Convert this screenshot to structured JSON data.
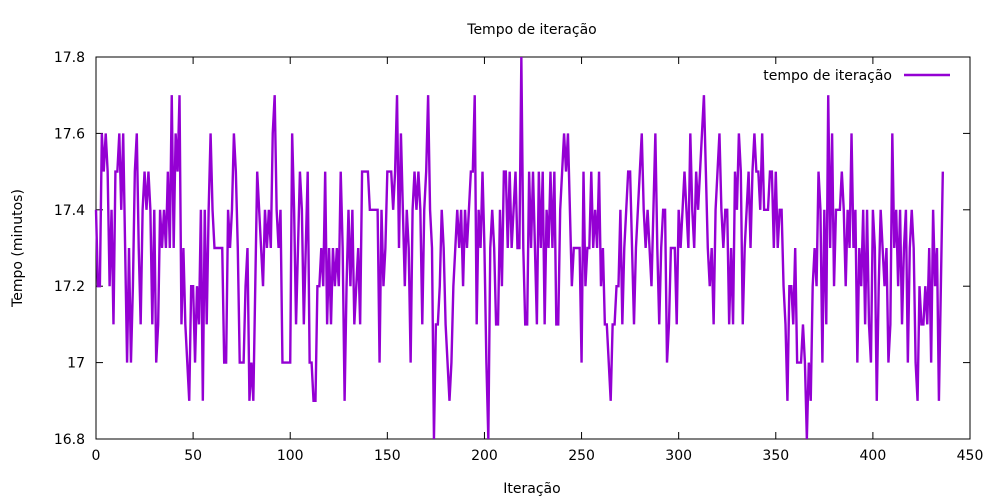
{
  "chart_data": {
    "type": "line",
    "title": "Tempo de iteração",
    "xlabel": "Iteração",
    "ylabel": "Tempo (minutos)",
    "xlim": [
      0,
      450
    ],
    "ylim": [
      16.8,
      17.8
    ],
    "x_ticks": [
      0,
      50,
      100,
      150,
      200,
      250,
      300,
      350,
      400,
      450
    ],
    "x_tick_labels": [
      "0",
      "50",
      "100",
      "150",
      "200",
      "250",
      "300",
      "350",
      "400",
      "450"
    ],
    "y_ticks": [
      16.8,
      17.0,
      17.2,
      17.4,
      17.6,
      17.8
    ],
    "y_tick_labels": [
      "16.8",
      "17",
      "17.2",
      "17.4",
      "17.6",
      "17.8"
    ],
    "legend_position": "top-right",
    "grid": false,
    "series": [
      {
        "name": "tempo de iteração",
        "color": "#9400d3",
        "values": [
          17.4,
          17.2,
          17.2,
          17.6,
          17.5,
          17.6,
          17.5,
          17.2,
          17.4,
          17.1,
          17.5,
          17.5,
          17.6,
          17.4,
          17.6,
          17.3,
          17.0,
          17.3,
          17.0,
          17.2,
          17.5,
          17.6,
          17.3,
          17.1,
          17.4,
          17.5,
          17.4,
          17.5,
          17.4,
          17.1,
          17.4,
          17.0,
          17.1,
          17.4,
          17.3,
          17.4,
          17.3,
          17.5,
          17.3,
          17.7,
          17.3,
          17.6,
          17.5,
          17.7,
          17.1,
          17.3,
          17.1,
          17.0,
          16.9,
          17.2,
          17.2,
          17.0,
          17.2,
          17.1,
          17.4,
          16.9,
          17.4,
          17.1,
          17.4,
          17.6,
          17.4,
          17.3,
          17.3,
          17.3,
          17.3,
          17.3,
          17.0,
          17.0,
          17.4,
          17.3,
          17.4,
          17.6,
          17.5,
          17.3,
          17.0,
          17.0,
          17.0,
          17.2,
          17.3,
          16.9,
          17.0,
          16.9,
          17.2,
          17.5,
          17.4,
          17.3,
          17.2,
          17.4,
          17.3,
          17.4,
          17.3,
          17.6,
          17.7,
          17.4,
          17.3,
          17.4,
          17.0,
          17.0,
          17.0,
          17.0,
          17.0,
          17.6,
          17.4,
          17.1,
          17.3,
          17.5,
          17.4,
          17.1,
          17.3,
          17.5,
          17.0,
          17.0,
          16.9,
          16.9,
          17.2,
          17.2,
          17.3,
          17.2,
          17.5,
          17.1,
          17.3,
          17.1,
          17.3,
          17.2,
          17.3,
          17.2,
          17.5,
          17.3,
          16.9,
          17.2,
          17.4,
          17.2,
          17.4,
          17.1,
          17.2,
          17.3,
          17.1,
          17.5,
          17.5,
          17.5,
          17.5,
          17.4,
          17.4,
          17.4,
          17.4,
          17.4,
          17.0,
          17.4,
          17.2,
          17.3,
          17.5,
          17.5,
          17.5,
          17.4,
          17.5,
          17.7,
          17.3,
          17.6,
          17.4,
          17.2,
          17.4,
          17.3,
          17.0,
          17.4,
          17.5,
          17.4,
          17.5,
          17.4,
          17.1,
          17.4,
          17.5,
          17.7,
          17.4,
          17.3,
          16.8,
          17.1,
          17.1,
          17.2,
          17.4,
          17.3,
          17.1,
          17.0,
          16.9,
          17.0,
          17.2,
          17.3,
          17.4,
          17.3,
          17.4,
          17.2,
          17.4,
          17.3,
          17.4,
          17.5,
          17.5,
          17.7,
          17.1,
          17.4,
          17.3,
          17.5,
          17.3,
          17.0,
          16.8,
          17.3,
          17.4,
          17.3,
          17.1,
          17.1,
          17.4,
          17.2,
          17.5,
          17.5,
          17.3,
          17.5,
          17.3,
          17.4,
          17.5,
          17.3,
          17.3,
          17.8,
          17.3,
          17.1,
          17.1,
          17.5,
          17.3,
          17.5,
          17.3,
          17.1,
          17.5,
          17.3,
          17.5,
          17.1,
          17.4,
          17.3,
          17.5,
          17.3,
          17.5,
          17.1,
          17.1,
          17.4,
          17.5,
          17.6,
          17.5,
          17.6,
          17.4,
          17.2,
          17.3,
          17.3,
          17.3,
          17.3,
          17.0,
          17.5,
          17.2,
          17.3,
          17.3,
          17.5,
          17.3,
          17.4,
          17.3,
          17.5,
          17.2,
          17.3,
          17.1,
          17.1,
          17.0,
          16.9,
          17.1,
          17.1,
          17.2,
          17.2,
          17.4,
          17.1,
          17.3,
          17.4,
          17.5,
          17.5,
          17.3,
          17.1,
          17.3,
          17.4,
          17.5,
          17.6,
          17.4,
          17.3,
          17.4,
          17.3,
          17.2,
          17.4,
          17.6,
          17.3,
          17.1,
          17.3,
          17.4,
          17.4,
          17.0,
          17.1,
          17.3,
          17.3,
          17.3,
          17.1,
          17.4,
          17.3,
          17.4,
          17.5,
          17.4,
          17.3,
          17.6,
          17.4,
          17.3,
          17.5,
          17.4,
          17.5,
          17.6,
          17.7,
          17.5,
          17.3,
          17.2,
          17.3,
          17.1,
          17.4,
          17.5,
          17.6,
          17.4,
          17.3,
          17.4,
          17.4,
          17.1,
          17.3,
          17.1,
          17.5,
          17.4,
          17.6,
          17.5,
          17.1,
          17.3,
          17.4,
          17.5,
          17.3,
          17.5,
          17.6,
          17.5,
          17.5,
          17.4,
          17.6,
          17.4,
          17.4,
          17.4,
          17.5,
          17.5,
          17.3,
          17.5,
          17.3,
          17.4,
          17.4,
          17.2,
          17.1,
          16.9,
          17.2,
          17.2,
          17.1,
          17.3,
          17.0,
          17.0,
          17.0,
          17.1,
          17.0,
          16.8,
          17.0,
          16.9,
          17.2,
          17.3,
          17.2,
          17.5,
          17.4,
          17.0,
          17.4,
          17.1,
          17.7,
          17.3,
          17.6,
          17.2,
          17.4,
          17.4,
          17.4,
          17.5,
          17.4,
          17.2,
          17.4,
          17.3,
          17.6,
          17.3,
          17.4,
          17.0,
          17.3,
          17.2,
          17.4,
          17.1,
          17.4,
          17.1,
          17.0,
          17.4,
          17.3,
          16.9,
          17.2,
          17.4,
          17.3,
          17.2,
          17.3,
          17.0,
          17.1,
          17.6,
          17.3,
          17.4,
          17.2,
          17.4,
          17.1,
          17.3,
          17.4,
          17.0,
          17.3,
          17.4,
          17.3,
          17.0,
          16.9,
          17.2,
          17.1,
          17.1,
          17.2,
          17.1,
          17.3,
          17.0,
          17.4,
          17.2,
          17.3,
          16.9,
          17.2,
          17.5
        ]
      }
    ]
  }
}
